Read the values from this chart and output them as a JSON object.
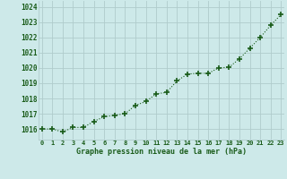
{
  "x": [
    0,
    1,
    2,
    3,
    4,
    5,
    6,
    7,
    8,
    9,
    10,
    11,
    12,
    13,
    14,
    15,
    16,
    17,
    18,
    19,
    20,
    21,
    22,
    23
  ],
  "y": [
    1016.0,
    1016.0,
    1015.8,
    1016.1,
    1016.1,
    1016.5,
    1016.8,
    1016.9,
    1017.0,
    1017.55,
    1017.8,
    1018.3,
    1018.4,
    1019.15,
    1019.6,
    1019.65,
    1019.65,
    1020.0,
    1020.05,
    1020.6,
    1021.3,
    1022.0,
    1022.8,
    1023.5
  ],
  "bg_color": "#cde9e9",
  "grid_color": "#b0cccc",
  "line_color": "#1a5c1a",
  "marker_color": "#1a5c1a",
  "xlabel": "Graphe pression niveau de la mer (hPa)",
  "xlabel_color": "#1a5c1a",
  "tick_color": "#1a5c1a",
  "ylabel_ticks": [
    1016,
    1017,
    1018,
    1019,
    1020,
    1021,
    1022,
    1023,
    1024
  ],
  "ylim": [
    1015.3,
    1024.4
  ],
  "xlim": [
    -0.3,
    23.3
  ]
}
